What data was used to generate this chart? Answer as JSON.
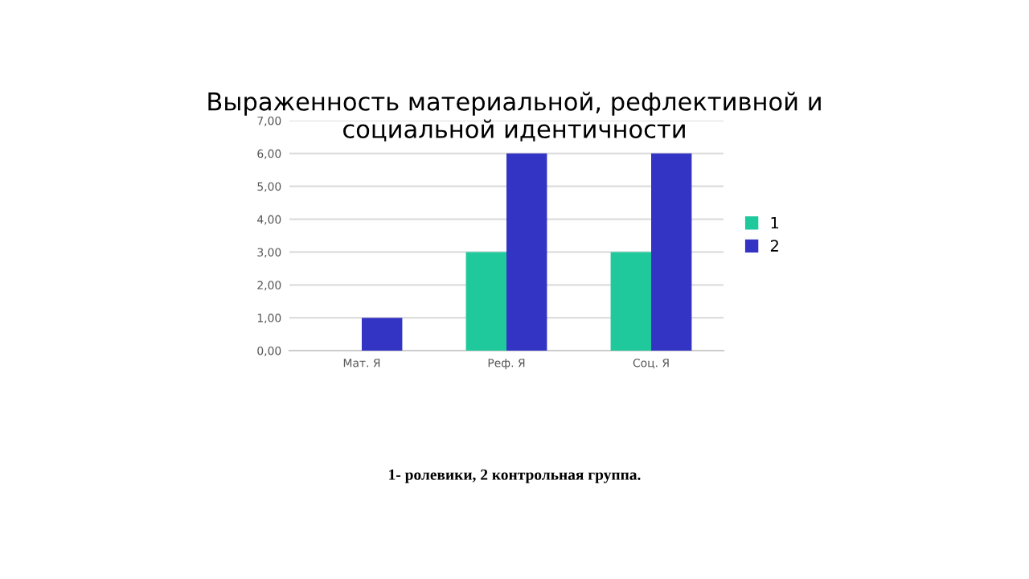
{
  "chart_data": {
    "type": "bar",
    "title": "Выраженность материальной, рефлективной и\nсоциальной идентичности",
    "categories": [
      "Мат. Я",
      "Реф. Я",
      "Соц. Я"
    ],
    "series": [
      {
        "name": "1",
        "color": "#1fc99b",
        "values": [
          0,
          3,
          3
        ]
      },
      {
        "name": "2",
        "color": "#3333c4",
        "values": [
          1,
          6,
          6
        ]
      }
    ],
    "ylim": [
      0,
      7
    ],
    "yticks": [
      {
        "value": 0,
        "label": "0,00"
      },
      {
        "value": 1,
        "label": "1,00"
      },
      {
        "value": 2,
        "label": "2,00"
      },
      {
        "value": 3,
        "label": "3,00"
      },
      {
        "value": 4,
        "label": "4,00"
      },
      {
        "value": 5,
        "label": "5,00"
      },
      {
        "value": 6,
        "label": "6,00"
      },
      {
        "value": 7,
        "label": "7,00"
      }
    ],
    "grid": "y",
    "legend": "right",
    "annotations": [
      "1- ролевики, 2 контрольная группа."
    ]
  }
}
